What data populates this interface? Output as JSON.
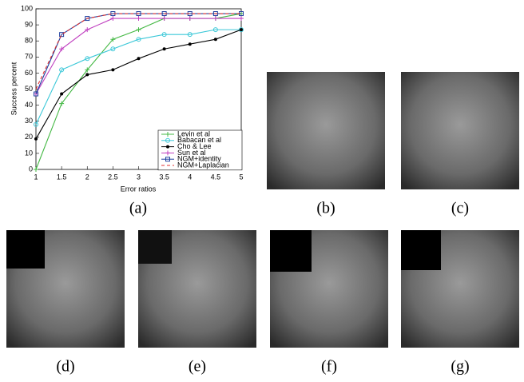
{
  "chart_data": {
    "type": "line",
    "x_label": "Error ratios",
    "y_label": "Success percent",
    "x": [
      1,
      1.5,
      2,
      2.5,
      3,
      3.5,
      4,
      4.5,
      5
    ],
    "xlim": [
      1,
      5
    ],
    "xticks": [
      1,
      1.5,
      2,
      2.5,
      3,
      3.5,
      4,
      4.5,
      5
    ],
    "ylim": [
      0,
      100
    ],
    "yticks": [
      0,
      10,
      20,
      30,
      40,
      50,
      60,
      70,
      80,
      90,
      100
    ],
    "grid": false,
    "legend": "lower right",
    "series": [
      {
        "name": "Levin et al",
        "color": "#44b844",
        "marker": "plus",
        "style": "solid",
        "values": [
          0,
          41,
          62,
          81,
          87,
          94,
          94,
          94,
          97
        ]
      },
      {
        "name": "Babacan et al",
        "color": "#3cc8d8",
        "marker": "circle",
        "style": "solid",
        "values": [
          28,
          62,
          69,
          75,
          81,
          84,
          84,
          87,
          87
        ]
      },
      {
        "name": "Cho & Lee",
        "color": "#000000",
        "marker": "dot",
        "style": "solid",
        "values": [
          19,
          47,
          59,
          62,
          69,
          75,
          78,
          81,
          87
        ]
      },
      {
        "name": "Sun et al",
        "color": "#c040c0",
        "marker": "plus",
        "style": "solid",
        "values": [
          47,
          75,
          87,
          94,
          94,
          94,
          94,
          94,
          94
        ]
      },
      {
        "name": "NGM+identity",
        "color": "#2040a0",
        "marker": "square",
        "style": "solid",
        "values": [
          47,
          84,
          94,
          97,
          97,
          97,
          97,
          97,
          97
        ]
      },
      {
        "name": "NGM+Laplacian",
        "color": "#e03030",
        "marker": "none",
        "style": "dashed",
        "values": [
          50,
          84,
          94,
          97,
          97,
          97,
          97,
          97,
          97
        ]
      }
    ]
  },
  "panels": [
    "(a)",
    "(b)",
    "(c)",
    "(d)",
    "(e)",
    "(f)",
    "(g)"
  ]
}
